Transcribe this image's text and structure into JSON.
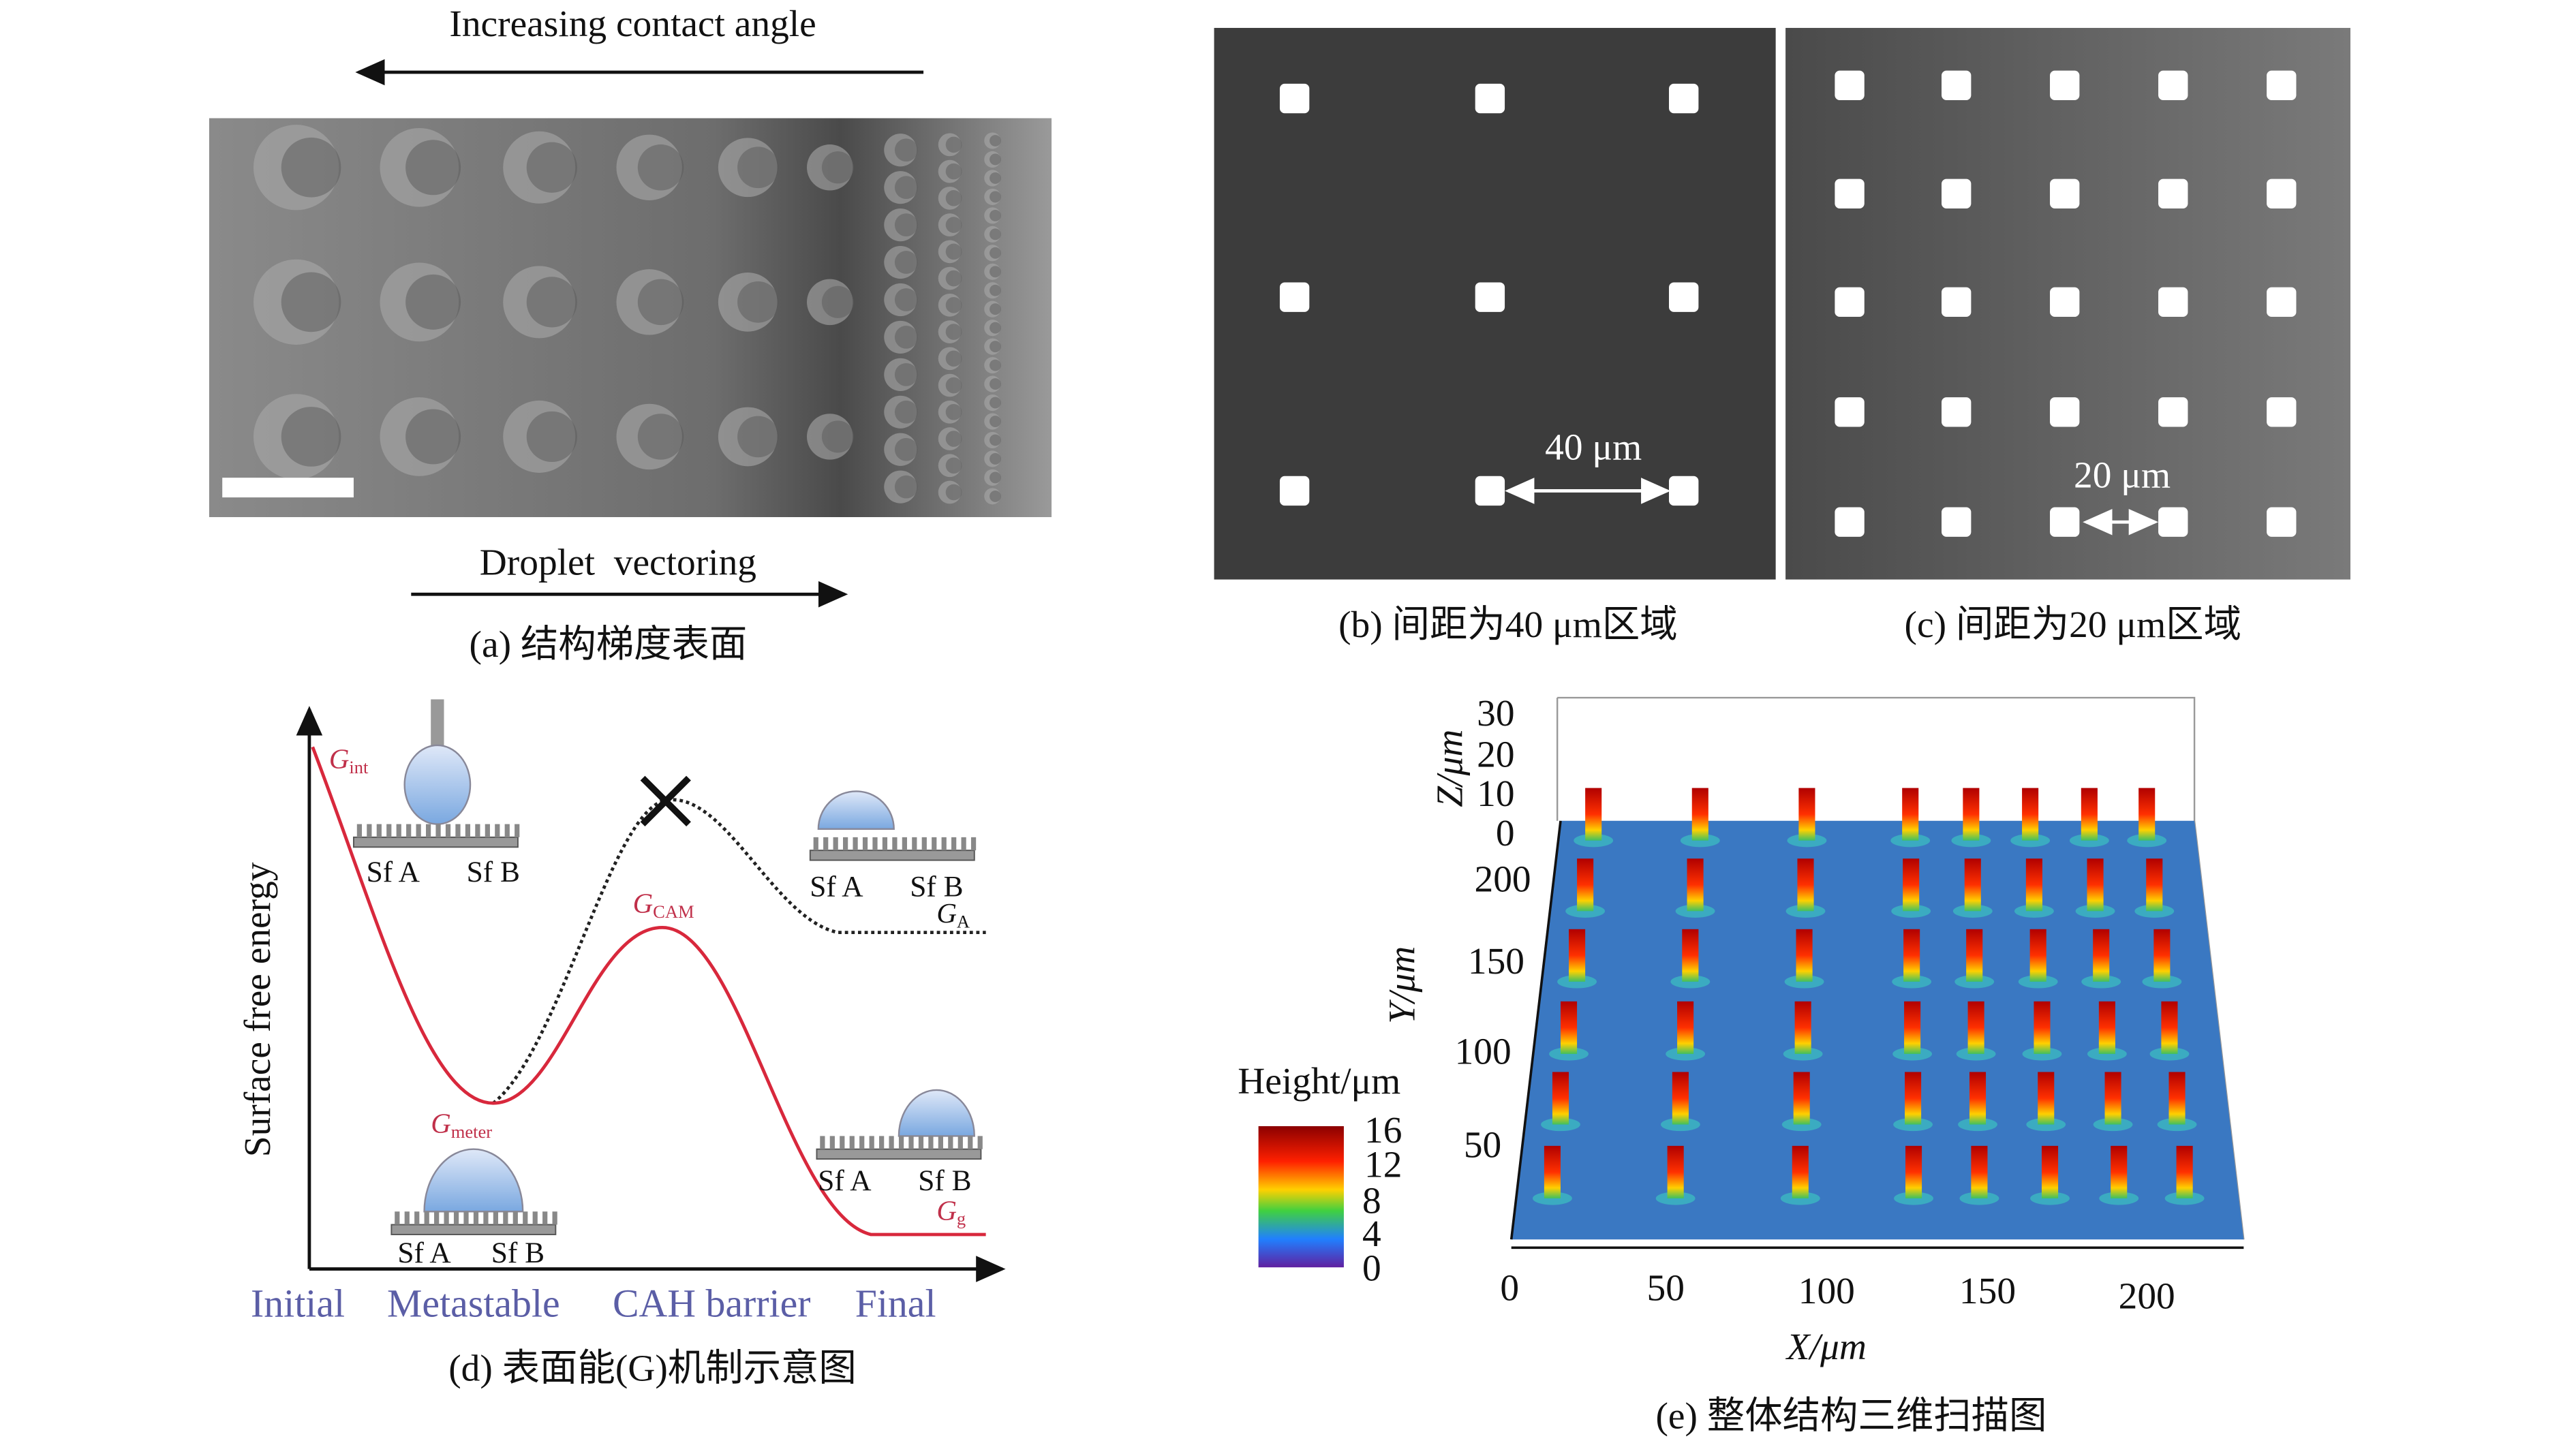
{
  "panel_a": {
    "top_label": "Increasing contact angle",
    "bottom_label": "Droplet  vectoring",
    "caption": "(a) 结构梯度表面"
  },
  "panel_b": {
    "scale_label": "40 μm",
    "caption": "(b) 间距为40 μm区域"
  },
  "panel_c": {
    "scale_label": "20 μm",
    "caption": "(c) 间距为20 μm区域"
  },
  "panel_d": {
    "y_label": "Surface free energy",
    "curve_labels": [
      {
        "symbol": "G",
        "subscript": "int"
      },
      {
        "symbol": "G",
        "subscript": "meter"
      },
      {
        "symbol": "G",
        "subscript": "CAM"
      },
      {
        "symbol": "G",
        "subscript": "A"
      },
      {
        "symbol": "G",
        "subscript": "g"
      }
    ],
    "surface_labels": [
      [
        "Sf A",
        "Sf B"
      ],
      [
        "Sf A",
        "Sf B"
      ],
      [
        "Sf A",
        "Sf B"
      ],
      [
        "Sf A",
        "Sf B"
      ]
    ],
    "x_labels": [
      "Initial",
      "Metastable",
      "CAH barrier",
      "Final"
    ],
    "caption": "(d) 表面能(G)机制示意图"
  },
  "panel_e": {
    "z_label": "Z/μm",
    "y_label": "Y/μm",
    "x_label": "X/μm",
    "z_ticks": [
      "30",
      "20",
      "10",
      "0"
    ],
    "y_ticks": [
      "200",
      "150",
      "100",
      "50"
    ],
    "x_ticks": [
      "0",
      "50",
      "100",
      "150",
      "200"
    ],
    "colorbar_title": "Height/μm",
    "colorbar_ticks": [
      "16",
      "12",
      "8",
      "4",
      "0"
    ],
    "caption": "(e) 整体结构三维扫描图"
  }
}
